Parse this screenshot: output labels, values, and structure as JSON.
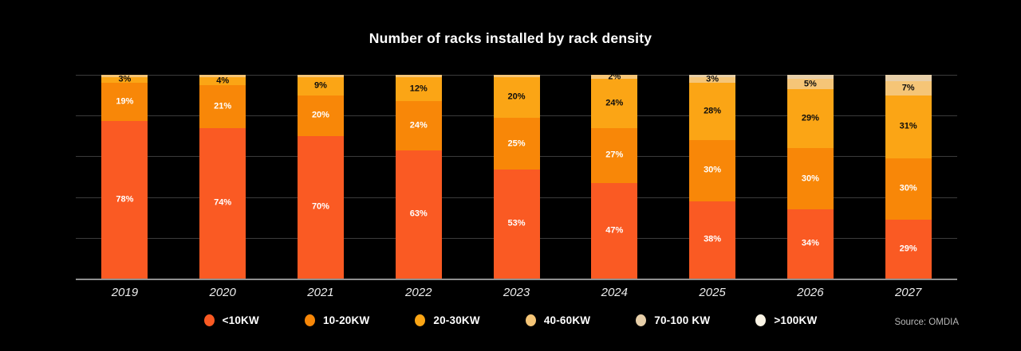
{
  "title": "Number of racks installed by rack density",
  "source": "Source: OMDIA",
  "colors": {
    "background": "#000000",
    "grid_line": "#3b3b3b",
    "baseline": "#8f8f8f",
    "title_text": "#ffffff",
    "axis_text": "#ededed",
    "source_text": "#b9b9b9"
  },
  "legend": {
    "position": "bottom",
    "items": [
      {
        "label": "<10KW",
        "color": "#FA5A23"
      },
      {
        "label": "10-20KW",
        "color": "#F88708"
      },
      {
        "label": "20-30KW",
        "color": "#FBA515"
      },
      {
        "label": "40-60KW",
        "color": "#F5C577"
      },
      {
        "label": "70-100 KW",
        "color": "#E7CFA9"
      },
      {
        "label": ">100KW",
        "color": "#FBF5E6"
      }
    ]
  },
  "chart_data": {
    "type": "bar",
    "stacked": true,
    "title": "Number of racks installed by rack density",
    "xlabel": "",
    "ylabel": "",
    "ylim": [
      0,
      100
    ],
    "grid": "horizontal",
    "gridline_percents": [
      0,
      20,
      40,
      60,
      80,
      100
    ],
    "legend_position": "bottom",
    "categories": [
      "2019",
      "2020",
      "2021",
      "2022",
      "2023",
      "2024",
      "2025",
      "2026",
      "2027"
    ],
    "series": [
      {
        "name": "<10KW",
        "color": "#FA5A23",
        "label_color": "#ffffff",
        "values": [
          78,
          74,
          70,
          63,
          53,
          47,
          38,
          34,
          29
        ],
        "labels": [
          "78%",
          "74%",
          "70%",
          "63%",
          "53%",
          "47%",
          "38%",
          "34%",
          "29%"
        ]
      },
      {
        "name": "10-20KW",
        "color": "#F88708",
        "label_color": "#ffffff",
        "values": [
          19,
          21,
          20,
          24,
          25,
          27,
          30,
          30,
          30
        ],
        "labels": [
          "19%",
          "21%",
          "20%",
          "24%",
          "25%",
          "27%",
          "30%",
          "30%",
          "30%"
        ]
      },
      {
        "name": "20-30KW",
        "color": "#FBA515",
        "label_color": "#0d0d0d",
        "values": [
          3,
          4,
          9,
          12,
          20,
          24,
          28,
          29,
          31
        ],
        "labels": [
          "3%",
          "4%",
          "9%",
          "12%",
          "20%",
          "24%",
          "28%",
          "29%",
          "31%"
        ]
      },
      {
        "name": "40-60KW",
        "color": "#F5C577",
        "label_color": "#0d0d0d",
        "values": [
          1,
          1,
          1,
          1,
          1,
          2,
          3,
          5,
          7
        ],
        "labels": [
          "",
          "",
          "",
          "",
          "",
          "2%",
          "3%",
          "5%",
          "7%"
        ]
      },
      {
        "name": "70-100 KW",
        "color": "#E7CFA9",
        "label_color": "#0d0d0d",
        "values": [
          0,
          0,
          0,
          0,
          0,
          0,
          1,
          2,
          3
        ],
        "labels": [
          "",
          "",
          "",
          "",
          "",
          "",
          "",
          "",
          ""
        ]
      },
      {
        "name": ">100KW",
        "color": "#FBF5E6",
        "label_color": "#0d0d0d",
        "values": [
          0,
          0,
          0,
          0,
          0,
          0,
          0,
          0,
          0
        ],
        "labels": [
          "",
          "",
          "",
          "",
          "",
          "",
          "",
          "",
          ""
        ]
      }
    ]
  }
}
